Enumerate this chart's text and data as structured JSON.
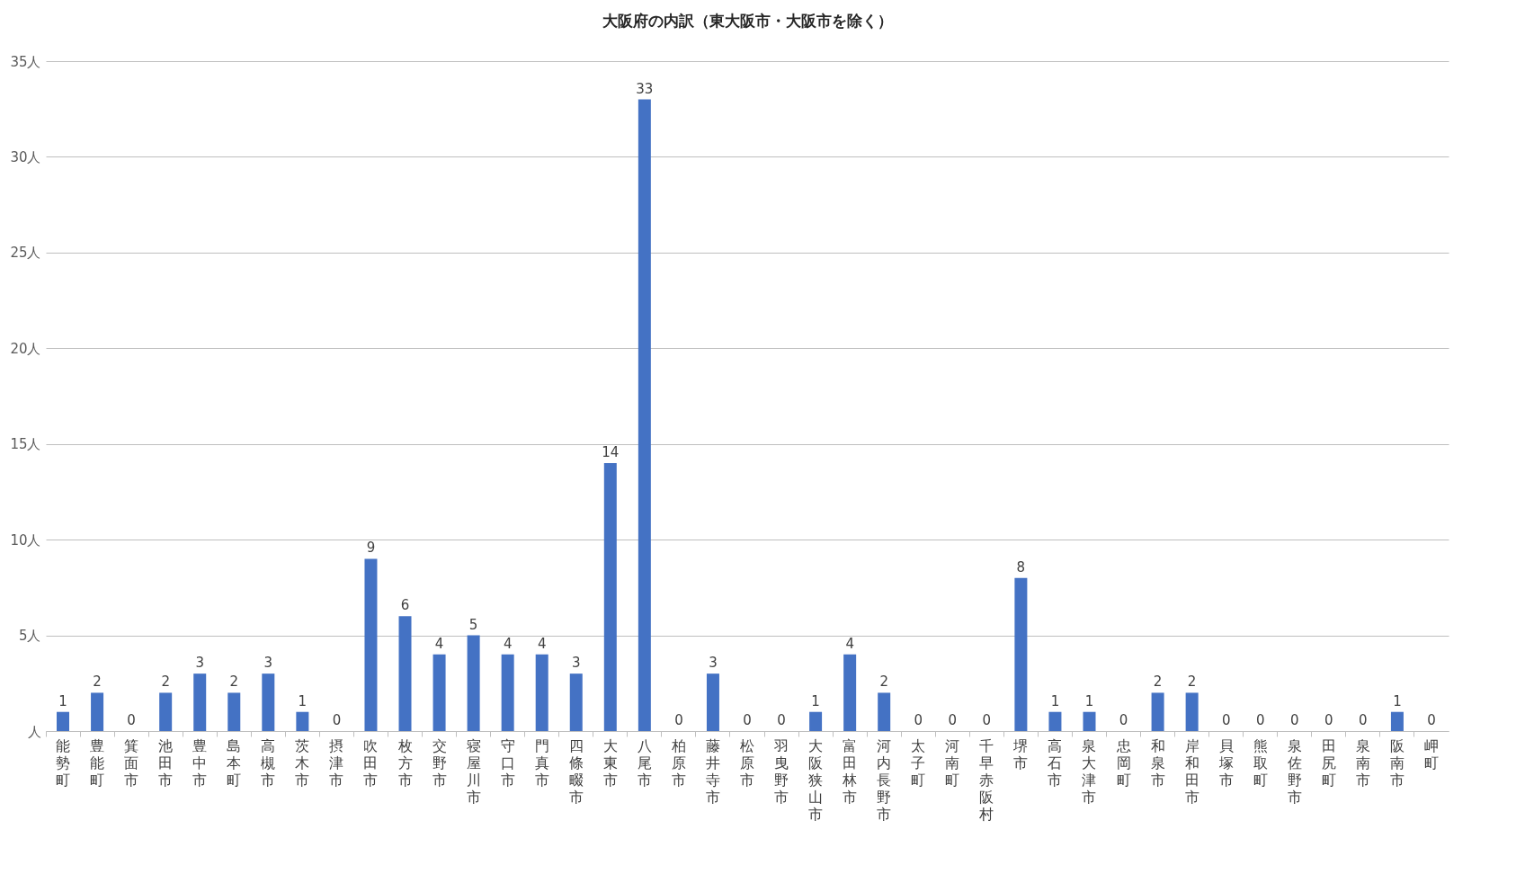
{
  "chart_data": {
    "type": "bar",
    "title": "大阪府の内訳（東大阪市・大阪市を除く）",
    "categories": [
      "能勢町",
      "豊能町",
      "箕面市",
      "池田市",
      "豊中市",
      "島本町",
      "高槻市",
      "茨木市",
      "摂津市",
      "吹田市",
      "枚方市",
      "交野市",
      "寝屋川市",
      "守口市",
      "門真市",
      "四條畷市",
      "大東市",
      "八尾市",
      "柏原市",
      "藤井寺市",
      "松原市",
      "羽曳野市",
      "大阪狭山市",
      "富田林市",
      "河内長野市",
      "太子町",
      "河南町",
      "千早赤阪村",
      "堺市",
      "高石市",
      "泉大津市",
      "忠岡町",
      "和泉市",
      "岸和田市",
      "貝塚市",
      "熊取町",
      "泉佐野市",
      "田尻町",
      "泉南市",
      "阪南市",
      "岬町"
    ],
    "values": [
      1,
      2,
      0,
      2,
      3,
      2,
      3,
      1,
      0,
      9,
      6,
      4,
      5,
      4,
      4,
      3,
      14,
      33,
      0,
      3,
      0,
      0,
      1,
      4,
      2,
      0,
      0,
      0,
      8,
      1,
      1,
      0,
      2,
      2,
      0,
      0,
      0,
      0,
      0,
      1,
      0
    ],
    "color": "#4472c4",
    "ylim": [
      0,
      35
    ],
    "yticks": [
      {
        "value": 0,
        "label": "人"
      },
      {
        "value": 5,
        "label": "5人"
      },
      {
        "value": 10,
        "label": "10人"
      },
      {
        "value": 15,
        "label": "15人"
      },
      {
        "value": 20,
        "label": "20人"
      },
      {
        "value": 25,
        "label": "25人"
      },
      {
        "value": 30,
        "label": "30人"
      },
      {
        "value": 35,
        "label": "35人"
      }
    ],
    "grid": "y",
    "data_labels": true
  }
}
